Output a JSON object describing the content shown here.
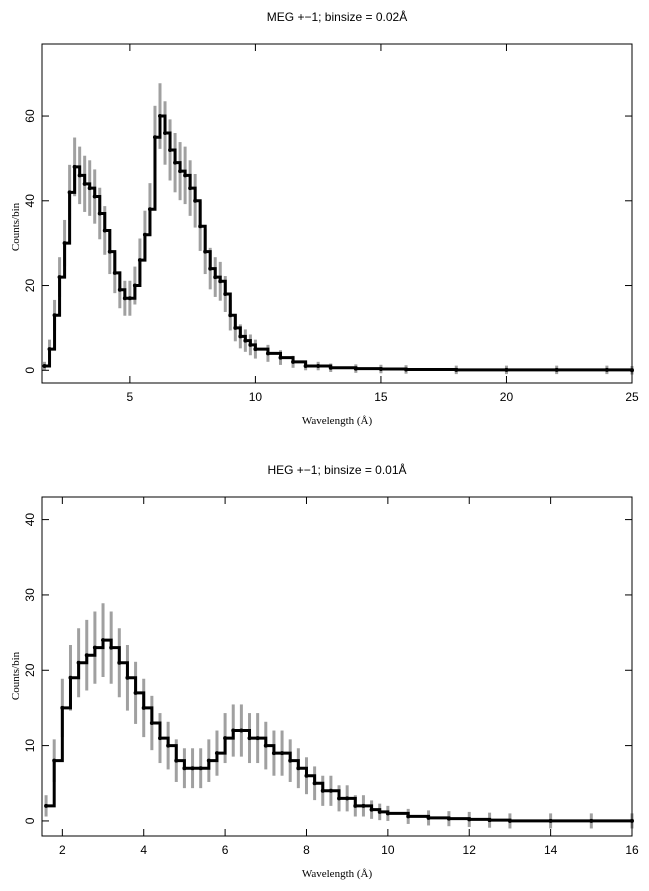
{
  "chart_data": [
    {
      "type": "line",
      "title": "MEG +−1; binsize = 0.02Å",
      "xlabel": "Wavelength (Å)",
      "ylabel": "Counts/bin",
      "xlim": [
        1.5,
        25
      ],
      "ylim": [
        -3,
        77
      ],
      "xticks": [
        5,
        10,
        15,
        20,
        25
      ],
      "yticks": [
        0,
        20,
        40,
        60
      ],
      "grid": false,
      "series": [
        {
          "style": "histogram with grey error bars",
          "x": [
            1.6,
            1.8,
            2.0,
            2.2,
            2.4,
            2.6,
            2.8,
            3.0,
            3.2,
            3.4,
            3.6,
            3.8,
            4.0,
            4.2,
            4.4,
            4.6,
            4.8,
            5.0,
            5.2,
            5.4,
            5.6,
            5.8,
            6.0,
            6.2,
            6.4,
            6.6,
            6.8,
            7.0,
            7.2,
            7.4,
            7.6,
            7.8,
            8.0,
            8.2,
            8.4,
            8.6,
            8.8,
            9.0,
            9.2,
            9.4,
            9.6,
            9.8,
            10.0,
            10.5,
            11.0,
            11.5,
            12.0,
            12.5,
            13.0,
            14.0,
            15.0,
            16.0,
            18.0,
            20.0,
            22.0,
            24.0,
            25.0
          ],
          "y": [
            1,
            5,
            13,
            22,
            30,
            42,
            48,
            46,
            44,
            43,
            41,
            37,
            33,
            28,
            23,
            19,
            17,
            17,
            20,
            26,
            32,
            38,
            55,
            60,
            56,
            52,
            49,
            47,
            46,
            43,
            40,
            34,
            28,
            24,
            22,
            21,
            18,
            13,
            10,
            8,
            7,
            6,
            5,
            4,
            3,
            2,
            1,
            1,
            0.6,
            0.4,
            0.3,
            0.2,
            0.1,
            0.1,
            0.1,
            0.1,
            0
          ]
        }
      ]
    },
    {
      "type": "line",
      "title": "HEG +−1; binsize = 0.01Å",
      "xlabel": "Wavelength (Å)",
      "ylabel": "Counts/bin",
      "xlim": [
        1.5,
        16
      ],
      "ylim": [
        -2,
        43
      ],
      "xticks": [
        2,
        4,
        6,
        8,
        10,
        12,
        14,
        16
      ],
      "yticks": [
        0,
        10,
        20,
        30,
        40
      ],
      "grid": false,
      "series": [
        {
          "style": "histogram with grey error bars",
          "x": [
            1.6,
            1.8,
            2.0,
            2.2,
            2.4,
            2.6,
            2.8,
            3.0,
            3.2,
            3.4,
            3.6,
            3.8,
            4.0,
            4.2,
            4.4,
            4.6,
            4.8,
            5.0,
            5.2,
            5.4,
            5.6,
            5.8,
            6.0,
            6.2,
            6.4,
            6.6,
            6.8,
            7.0,
            7.2,
            7.4,
            7.6,
            7.8,
            8.0,
            8.2,
            8.4,
            8.6,
            8.8,
            9.0,
            9.2,
            9.4,
            9.6,
            9.8,
            10.0,
            10.5,
            11.0,
            11.5,
            12.0,
            12.5,
            13.0,
            14.0,
            15.0,
            16.0
          ],
          "y": [
            2,
            8,
            15,
            19,
            21,
            22,
            23,
            24,
            23,
            21,
            19,
            17,
            15,
            13,
            11,
            10,
            8,
            7,
            7,
            7,
            8,
            9,
            11,
            12,
            12,
            11,
            11,
            10,
            9,
            9,
            8,
            7,
            6,
            5,
            4,
            4,
            3,
            3,
            2,
            2,
            1.5,
            1.2,
            1,
            0.6,
            0.4,
            0.3,
            0.2,
            0.1,
            0,
            0,
            0,
            0
          ]
        }
      ]
    }
  ]
}
